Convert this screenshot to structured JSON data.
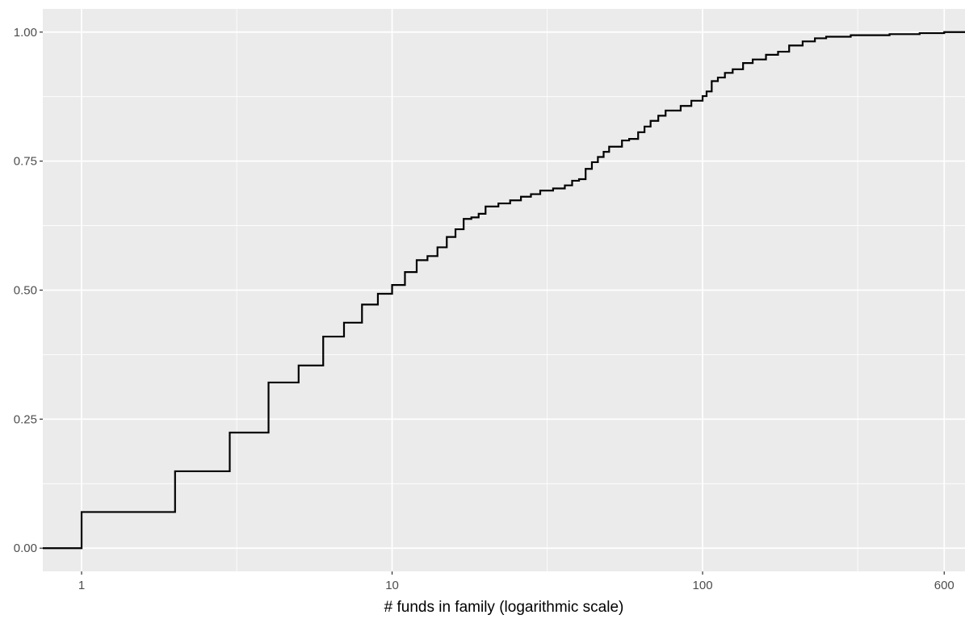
{
  "chart_data": {
    "type": "line",
    "step": true,
    "title": "",
    "xlabel": "# funds in family (logarithmic scale)",
    "ylabel": "",
    "x_scale": "log10",
    "xlim": [
      0.75,
      700
    ],
    "ylim": [
      -0.045,
      1.045
    ],
    "x_ticks": [
      1,
      10,
      100,
      600
    ],
    "x_tick_labels": [
      "1",
      "10",
      "100",
      "600"
    ],
    "x_minor_ticks": [
      3.16,
      31.6,
      316
    ],
    "y_ticks": [
      0,
      0.25,
      0.5,
      0.75,
      1
    ],
    "y_tick_labels": [
      "0.00",
      "0.25",
      "0.50",
      "0.75",
      "1.00"
    ],
    "y_minor_ticks": [
      0.125,
      0.375,
      0.625,
      0.875
    ],
    "grid": true,
    "panel_background": "#ebebeb",
    "grid_color": "#ffffff",
    "line_color": "#000000",
    "series": [
      {
        "x": [
          0.75,
          1,
          2,
          3,
          4,
          5,
          6,
          7,
          8,
          9,
          10,
          11,
          12,
          13,
          14,
          15,
          16,
          17,
          18,
          19,
          20,
          22,
          24,
          26,
          28,
          30,
          33,
          36,
          38,
          40,
          42,
          44,
          46,
          48,
          50,
          55,
          58,
          62,
          65,
          68,
          72,
          76,
          85,
          92,
          100,
          103,
          107,
          112,
          118,
          125,
          135,
          145,
          160,
          175,
          190,
          210,
          230,
          250,
          300,
          400,
          500,
          600,
          700
        ],
        "y": [
          0.0,
          0.07,
          0.149,
          0.224,
          0.321,
          0.354,
          0.41,
          0.437,
          0.472,
          0.493,
          0.51,
          0.535,
          0.558,
          0.566,
          0.583,
          0.603,
          0.618,
          0.638,
          0.641,
          0.648,
          0.662,
          0.668,
          0.674,
          0.681,
          0.686,
          0.693,
          0.697,
          0.703,
          0.712,
          0.715,
          0.735,
          0.748,
          0.758,
          0.768,
          0.778,
          0.79,
          0.793,
          0.806,
          0.817,
          0.828,
          0.838,
          0.848,
          0.857,
          0.867,
          0.876,
          0.885,
          0.905,
          0.912,
          0.921,
          0.928,
          0.94,
          0.947,
          0.956,
          0.962,
          0.974,
          0.982,
          0.988,
          0.991,
          0.994,
          0.996,
          0.998,
          1.0,
          1.0
        ]
      }
    ]
  }
}
